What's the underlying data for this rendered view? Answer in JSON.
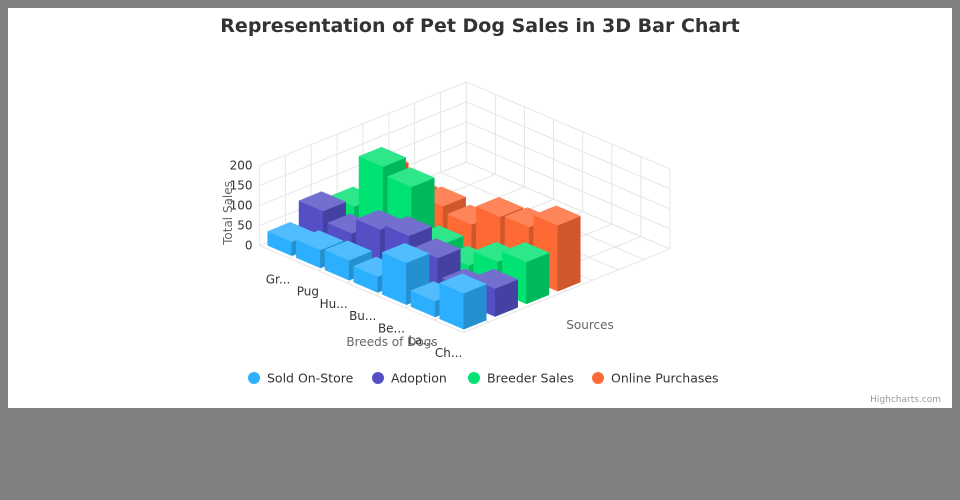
{
  "chart_data": {
    "type": "bar",
    "title": "Representation of Pet Dog Sales in 3D Bar Chart",
    "xlabel": "Breeds of Dogs",
    "ylabel": "Total Sales",
    "zlabel": "Sources",
    "ylim": [
      0,
      200
    ],
    "yticks": [
      "0",
      "50",
      "100",
      "150",
      "200"
    ],
    "categories": [
      "Gr...",
      "Pug",
      "Hu...",
      "Bu...",
      "Be...",
      "La...",
      "Ch..."
    ],
    "series": [
      {
        "name": "Sold On-Store",
        "color": "#2caffe",
        "values": [
          35,
          45,
          50,
          40,
          105,
          40,
          90
        ]
      },
      {
        "name": "Adoption",
        "color": "#544fc5",
        "values": [
          80,
          55,
          95,
          110,
          85,
          40,
          70
        ]
      },
      {
        "name": "Breeder Sales",
        "color": "#00e272",
        "values": [
          60,
          190,
          170,
          55,
          35,
          75,
          105
        ]
      },
      {
        "name": "Online Purchases",
        "color": "#fe6a35",
        "values": [
          115,
          85,
          90,
          75,
          125,
          130,
          165
        ]
      }
    ],
    "legend_position": "bottom-center",
    "grid": true
  },
  "credits": "Highcharts.com"
}
